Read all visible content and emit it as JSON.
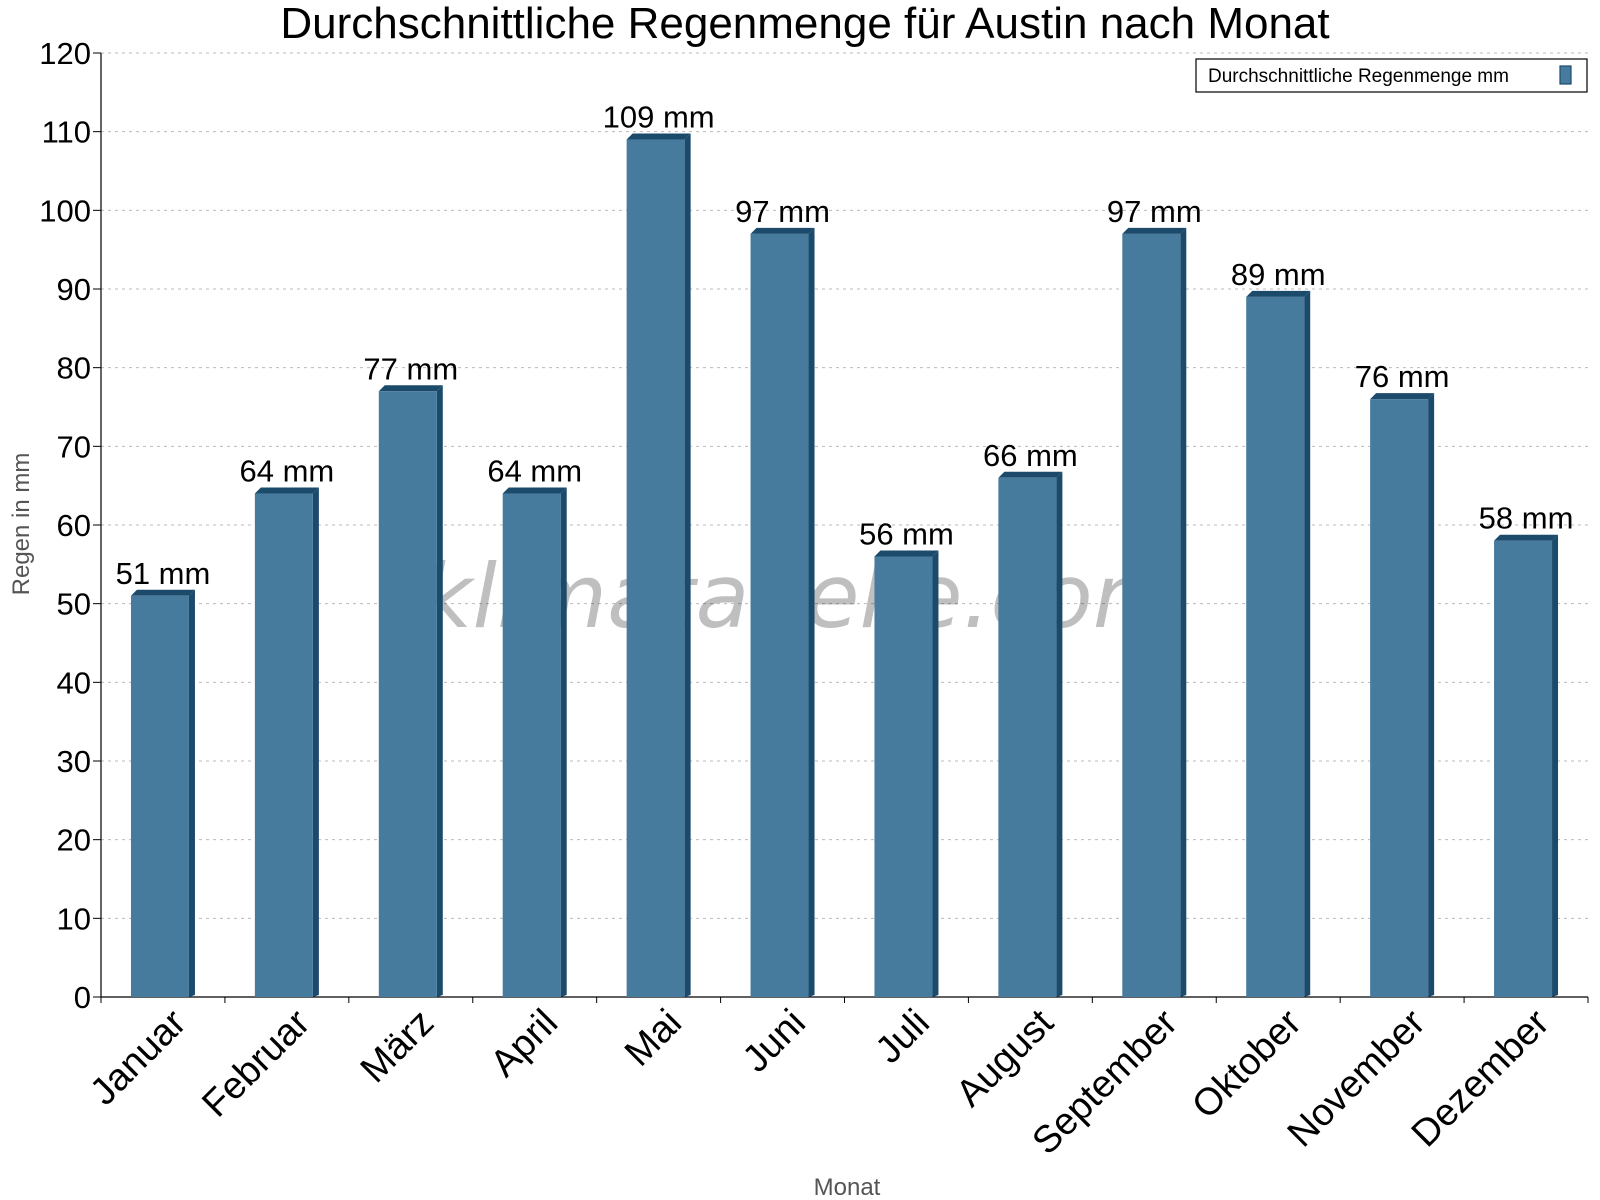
{
  "chart_data": {
    "type": "bar",
    "title": "Durchschnittliche Regenmenge für Austin nach Monat",
    "xlabel": "Monat",
    "ylabel": "Regen in mm",
    "ylim": [
      0,
      120
    ],
    "ytick_step": 10,
    "grid": true,
    "legend_position": "top-right",
    "categories": [
      "Januar",
      "Februar",
      "März",
      "April",
      "Mai",
      "Juni",
      "Juli",
      "August",
      "September",
      "Oktober",
      "November",
      "Dezember"
    ],
    "series": [
      {
        "name": "Durchschnittliche Regenmenge mm",
        "color": "#467b9e",
        "values": [
          51,
          64,
          77,
          64,
          109,
          97,
          56,
          66,
          97,
          89,
          76,
          58
        ],
        "data_labels": [
          "51 mm",
          "64 mm",
          "77 mm",
          "64 mm",
          "109 mm",
          "97 mm",
          "56 mm",
          "66 mm",
          "97 mm",
          "89 mm",
          "76 mm",
          "58 mm"
        ]
      }
    ],
    "watermark": "klimatabelle.com"
  }
}
